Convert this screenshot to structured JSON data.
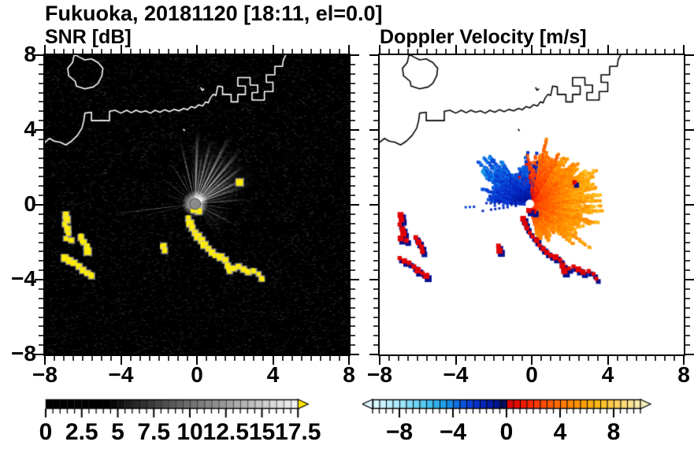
{
  "header": {
    "title": "Fukuoka, 20181120 [18:11, el=0.0]"
  },
  "chart_data": [
    {
      "type": "heatmap",
      "id": "snr",
      "title": "SNR [dB]",
      "xlim": [
        -8,
        8
      ],
      "ylim": [
        -8,
        8
      ],
      "major_ticks": [
        -8,
        -4,
        0,
        4,
        8
      ],
      "minor_step": 0.5,
      "x_tick_labels": [
        "−8",
        "−4",
        "0",
        "4",
        "8"
      ],
      "y_tick_labels": [
        "8",
        "4",
        "0",
        "−4",
        "−8"
      ],
      "background": "#000000",
      "coast_color": "#ffffff",
      "radar_center": [
        -0.1,
        0.05
      ],
      "center_dot_color": "#8a8a8a",
      "beam_color": "#ffffff",
      "echo_color": "#ffec00",
      "glows": [
        [
          55,
          3.6,
          38,
          0.16
        ],
        [
          20,
          2.8,
          18,
          0.1
        ],
        [
          -35,
          2.2,
          22,
          0.08
        ]
      ],
      "beams": [
        [
          20,
          2.6,
          1.2,
          0.7
        ],
        [
          27,
          3.1,
          1.5,
          0.8
        ],
        [
          33,
          2.4,
          1.0,
          0.65
        ],
        [
          38,
          3.3,
          1.4,
          0.85
        ],
        [
          44,
          2.9,
          1.2,
          0.75
        ],
        [
          50,
          3.7,
          1.6,
          0.9
        ],
        [
          57,
          3.2,
          1.2,
          0.8
        ],
        [
          63,
          4.0,
          1.5,
          0.85
        ],
        [
          70,
          3.0,
          1.1,
          0.75
        ],
        [
          76,
          3.5,
          1.3,
          0.8
        ],
        [
          82,
          2.7,
          1.0,
          0.7
        ],
        [
          88,
          3.9,
          1.4,
          0.85
        ],
        [
          95,
          2.3,
          1.0,
          0.55
        ],
        [
          103,
          3.4,
          1.2,
          0.65
        ],
        [
          112,
          2.0,
          0.9,
          0.5
        ],
        [
          120,
          2.6,
          1.0,
          0.55
        ],
        [
          131,
          1.7,
          0.8,
          0.45
        ],
        [
          142,
          2.2,
          0.9,
          0.5
        ],
        [
          152,
          1.5,
          0.8,
          0.4
        ],
        [
          163,
          1.9,
          0.8,
          0.45
        ],
        [
          172,
          1.2,
          0.6,
          0.35
        ],
        [
          187,
          4.3,
          0.6,
          0.6
        ],
        [
          193,
          2.9,
          0.5,
          0.45
        ],
        [
          205,
          1.3,
          0.7,
          0.35
        ],
        [
          218,
          0.9,
          0.6,
          0.3
        ],
        [
          352,
          2.1,
          0.9,
          0.55
        ],
        [
          342,
          1.6,
          0.8,
          0.45
        ],
        [
          332,
          2.4,
          1.0,
          0.55
        ],
        [
          320,
          1.8,
          0.8,
          0.45
        ],
        [
          308,
          1.3,
          0.7,
          0.4
        ],
        [
          295,
          1.0,
          0.6,
          0.35
        ],
        [
          5,
          2.8,
          1.0,
          0.65
        ],
        [
          12,
          2.2,
          0.9,
          0.6
        ]
      ],
      "colorbar": {
        "min": 0,
        "max": 17.5,
        "cell": 0.5,
        "labels": [
          0,
          2.5,
          5,
          7.5,
          10,
          12.5,
          15,
          17.5
        ],
        "label_texts": [
          "0",
          "2.5",
          "5",
          "7.5",
          "10",
          "12.5",
          "15",
          "17.5"
        ],
        "palette": "gray",
        "arrow_right_color": "#ffe600"
      }
    },
    {
      "type": "heatmap",
      "id": "velocity",
      "title": "Doppler Velocity [m/s]",
      "xlim": [
        -8,
        8
      ],
      "ylim": [
        -8,
        8
      ],
      "major_ticks": [
        -8,
        -4,
        0,
        4,
        8
      ],
      "minor_step": 0.5,
      "x_tick_labels": [
        "−8",
        "−4",
        "0",
        "4",
        "8"
      ],
      "background": "#ffffff",
      "coast_color": "#000000",
      "radar_center": [
        -0.1,
        0.05
      ],
      "center_dot_color": "#ffffff",
      "sectors": [
        {
          "from": -78,
          "to": -45,
          "r": 1.7,
          "v0": 1.5,
          "v1": 5.0
        },
        {
          "from": -45,
          "to": -8,
          "r": 2.4,
          "v0": 1.8,
          "v1": 6.0
        },
        {
          "from": -8,
          "to": 30,
          "r": 3.0,
          "v0": 2.0,
          "v1": 6.5
        },
        {
          "from": 30,
          "to": 58,
          "r": 2.7,
          "v0": 1.6,
          "v1": 5.5
        },
        {
          "from": 58,
          "to": 80,
          "r": 2.2,
          "v0": 0.8,
          "v1": 4.0
        },
        {
          "from": 80,
          "to": 93,
          "r": 1.9,
          "v0": 0.6,
          "v1": 3.0,
          "mix_neg": 0.25
        },
        {
          "from": 95,
          "to": 122,
          "r": 1.6,
          "v0": -0.6,
          "v1": -3.2,
          "mix_pos": 0.05
        },
        {
          "from": 122,
          "to": 152,
          "r": 2.4,
          "v0": -0.8,
          "v1": -3.8
        },
        {
          "from": 152,
          "to": 176,
          "r": 1.8,
          "v0": -0.6,
          "v1": -3.0
        }
      ],
      "rays": [
        {
          "angle": 183,
          "len": 3.6,
          "v": -2.5
        },
        {
          "angle": 188.5,
          "len": 2.9,
          "v": -2.0
        },
        {
          "angle": 179,
          "len": 2.3,
          "v": -1.6
        }
      ],
      "echo_pos_color": "#e00000",
      "echo_neg_color": "#001090",
      "colorbar": {
        "min": -10,
        "max": 10,
        "cell": 0.5,
        "labels": [
          -8,
          -4,
          0,
          4,
          8
        ],
        "label_texts": [
          "−8",
          "−4",
          "0",
          "4",
          "8"
        ],
        "palette": "diverging",
        "arrow_left_value": -10,
        "arrow_right_value": 10
      }
    }
  ],
  "palettes": {
    "stops_neg": [
      [
        -10,
        "#dff8ff"
      ],
      [
        -8,
        "#a5e9fb"
      ],
      [
        -6,
        "#4cc6f2"
      ],
      [
        -4.5,
        "#189ae8"
      ],
      [
        -3.5,
        "#0a5ee0"
      ],
      [
        -2.5,
        "#0a35d0"
      ],
      [
        -1.5,
        "#0520b4"
      ],
      [
        -0.7,
        "#001490"
      ],
      [
        0,
        "#03093f"
      ]
    ],
    "stops_pos": [
      [
        0,
        "#d40000"
      ],
      [
        1,
        "#f01000"
      ],
      [
        2.5,
        "#ff4400"
      ],
      [
        4,
        "#ff7300"
      ],
      [
        5.5,
        "#ff9900"
      ],
      [
        7,
        "#ffbe1e"
      ],
      [
        8.5,
        "#ffd76a"
      ],
      [
        10,
        "#f6eebb"
      ]
    ],
    "gray_floor": 4.5
  },
  "coastline": [
    [
      [
        -6.45,
        8.05
      ],
      [
        -6.55,
        7.6
      ],
      [
        -6.8,
        7.3
      ],
      [
        -6.75,
        6.9
      ],
      [
        -6.4,
        6.6
      ],
      [
        -6.35,
        6.35
      ],
      [
        -5.9,
        6.2
      ],
      [
        -5.45,
        6.3
      ],
      [
        -5.2,
        6.5
      ],
      [
        -5.0,
        6.9
      ],
      [
        -4.95,
        7.3
      ],
      [
        -5.2,
        7.6
      ],
      [
        -5.55,
        7.8
      ],
      [
        -5.9,
        7.75
      ],
      [
        -6.2,
        7.9
      ],
      [
        -6.45,
        8.05
      ]
    ],
    [
      [
        -8.05,
        3.3
      ],
      [
        -7.75,
        3.55
      ],
      [
        -7.5,
        3.4
      ],
      [
        -7.2,
        3.35
      ],
      [
        -6.9,
        3.2
      ],
      [
        -6.6,
        3.4
      ],
      [
        -6.3,
        3.7
      ],
      [
        -6.05,
        4.1
      ],
      [
        -5.95,
        4.5
      ],
      [
        -5.9,
        4.9
      ],
      [
        -5.55,
        4.95
      ],
      [
        -5.55,
        4.5
      ],
      [
        -4.6,
        4.5
      ],
      [
        -4.6,
        5.0
      ],
      [
        -4.3,
        5.05
      ],
      [
        -4.0,
        4.9
      ],
      [
        -3.7,
        5.05
      ],
      [
        -3.45,
        4.92
      ],
      [
        -3.2,
        5.05
      ],
      [
        -2.95,
        4.95
      ],
      [
        -2.7,
        5.02
      ],
      [
        -2.45,
        4.9
      ],
      [
        -2.2,
        5.05
      ],
      [
        -1.95,
        4.95
      ],
      [
        -1.7,
        5.08
      ],
      [
        -1.45,
        4.98
      ],
      [
        -1.2,
        5.1
      ],
      [
        -0.95,
        5.02
      ],
      [
        -0.7,
        5.15
      ],
      [
        -0.5,
        5.08
      ],
      [
        -0.3,
        5.25
      ],
      [
        -0.1,
        5.18
      ],
      [
        0.1,
        5.35
      ],
      [
        0.3,
        5.28
      ],
      [
        0.45,
        5.5
      ],
      [
        0.6,
        5.45
      ],
      [
        0.7,
        5.7
      ],
      [
        0.85,
        5.9
      ],
      [
        1.0,
        5.85
      ],
      [
        1.05,
        6.1
      ],
      [
        1.1,
        6.35
      ],
      [
        1.35,
        6.3
      ],
      [
        1.35,
        5.9
      ],
      [
        1.8,
        5.9
      ],
      [
        1.8,
        5.5
      ],
      [
        2.15,
        5.5
      ],
      [
        2.15,
        5.9
      ],
      [
        2.55,
        5.9
      ],
      [
        2.55,
        6.35
      ],
      [
        2.15,
        6.35
      ],
      [
        2.15,
        6.8
      ],
      [
        2.8,
        6.8
      ],
      [
        2.8,
        6.4
      ],
      [
        3.2,
        6.4
      ],
      [
        3.2,
        6.0
      ],
      [
        2.9,
        6.0
      ],
      [
        2.9,
        5.6
      ],
      [
        3.55,
        5.6
      ],
      [
        3.55,
        6.05
      ],
      [
        4.0,
        6.05
      ],
      [
        4.0,
        6.55
      ],
      [
        3.65,
        6.55
      ],
      [
        3.65,
        6.95
      ],
      [
        4.1,
        6.95
      ],
      [
        4.1,
        7.4
      ],
      [
        4.5,
        7.4
      ],
      [
        4.55,
        7.75
      ],
      [
        4.7,
        8.05
      ]
    ],
    [
      [
        0.2,
        6.28
      ],
      [
        0.28,
        6.12
      ],
      [
        0.38,
        6.2
      ]
    ],
    [
      [
        -0.72,
        4.05
      ],
      [
        -0.64,
        3.95
      ]
    ]
  ],
  "ship_echoes": [
    [
      -6.9,
      -0.55
    ],
    [
      -6.85,
      -0.8
    ],
    [
      -6.95,
      -1.05
    ],
    [
      -6.8,
      -1.3
    ],
    [
      -6.75,
      -1.55
    ],
    [
      -6.9,
      -1.8
    ],
    [
      -6.6,
      -1.9
    ],
    [
      -6.1,
      -1.75
    ],
    [
      -5.95,
      -2.0
    ],
    [
      -5.8,
      -2.25
    ],
    [
      -5.75,
      -2.5
    ],
    [
      -6.95,
      -2.85
    ],
    [
      -6.7,
      -3.0
    ],
    [
      -6.45,
      -3.1
    ],
    [
      -6.2,
      -3.3
    ],
    [
      -6.0,
      -3.5
    ],
    [
      -5.75,
      -3.65
    ],
    [
      -5.55,
      -3.8
    ],
    [
      -0.45,
      -0.75
    ],
    [
      -0.35,
      -1.0
    ],
    [
      -0.25,
      -1.25
    ],
    [
      -0.1,
      -1.5
    ],
    [
      0.05,
      -1.7
    ],
    [
      0.25,
      -1.9
    ],
    [
      0.4,
      -2.15
    ],
    [
      0.6,
      -2.35
    ],
    [
      0.8,
      -2.55
    ],
    [
      1.0,
      -2.7
    ],
    [
      1.25,
      -2.8
    ],
    [
      1.5,
      -2.95
    ],
    [
      1.62,
      -3.25
    ],
    [
      1.72,
      -3.55
    ],
    [
      1.95,
      -3.4
    ],
    [
      2.2,
      -3.3
    ],
    [
      2.45,
      -3.45
    ],
    [
      2.7,
      -3.6
    ],
    [
      3.0,
      -3.55
    ],
    [
      3.25,
      -3.7
    ],
    [
      3.4,
      -3.95
    ],
    [
      -1.75,
      -2.2
    ],
    [
      -1.7,
      -2.45
    ],
    [
      2.25,
      1.2
    ],
    [
      0.1,
      -0.35
    ],
    [
      -0.15,
      -0.3
    ]
  ]
}
